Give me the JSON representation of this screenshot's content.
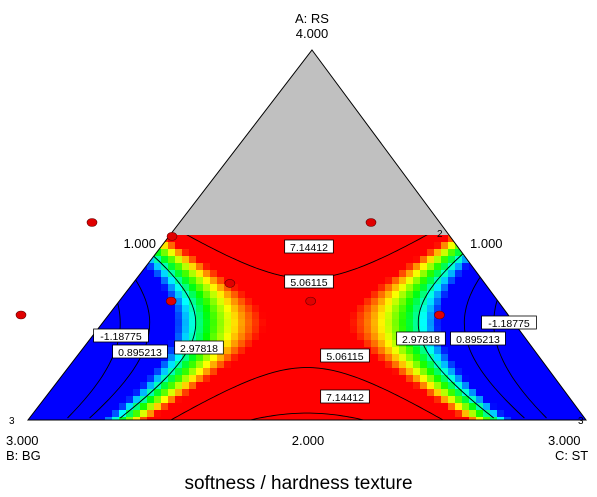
{
  "chart_data": {
    "type": "ternary-contour",
    "title": "softness / hardness texture",
    "vertices": {
      "top": {
        "name": "A: RS",
        "max": "4.000"
      },
      "left": {
        "name": "B: BG",
        "max": "3.000"
      },
      "right": {
        "name": "C: ST",
        "max": "3.000"
      }
    },
    "edge_labels": {
      "a_constraint_left": "1.000",
      "a_constraint_right": "1.000",
      "bottom_mid": "2.000"
    },
    "constrained_region_color": "#c0c0c0",
    "color_scale": [
      "#0000ff",
      "#00ffff",
      "#00ff00",
      "#ffff00",
      "#ff0000"
    ],
    "contour_levels": [
      "7.14412",
      "5.06115",
      "2.97818",
      "0.895213",
      "-1.18775"
    ],
    "design_points": [
      {
        "A": 1,
        "B": 2,
        "C": 0
      },
      {
        "A": 1,
        "B": 0,
        "C": 2
      },
      {
        "A": 0,
        "B": 3,
        "C": 0,
        "count": "3"
      },
      {
        "A": 0,
        "B": 0,
        "C": 3,
        "count": "3"
      },
      {
        "A": 0.85,
        "B": 1.5,
        "C": 0.65
      },
      {
        "A": 0.33,
        "B": 1.33,
        "C": 1.33
      },
      {
        "A": 0.15,
        "B": 1.85,
        "C": 1.0
      },
      {
        "A": 0.15,
        "B": 0.85,
        "C": 2.0
      }
    ],
    "point_counts": {
      "top_right_vertex": "2",
      "bottom_left": "3",
      "bottom_right": "3"
    }
  }
}
